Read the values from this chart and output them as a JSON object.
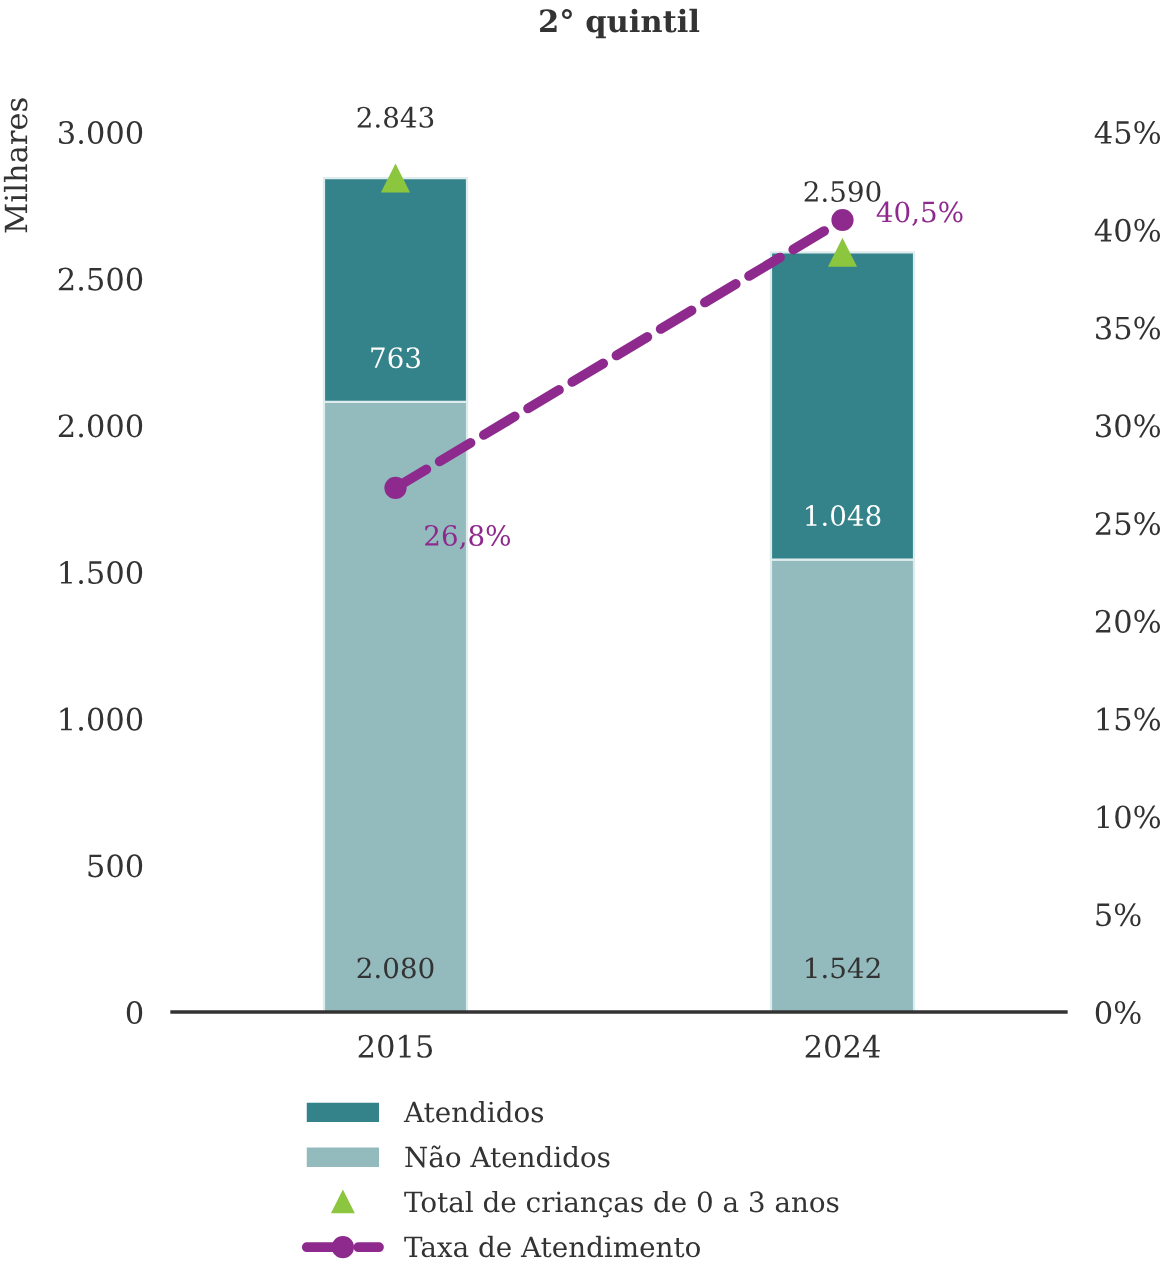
{
  "chart_data": {
    "type": "bar",
    "title": "2° quintil",
    "ylabel": "Milhares",
    "categories": [
      "2015",
      "2024"
    ],
    "stacked": true,
    "series": [
      {
        "name": "Não Atendidos",
        "color": "#93babd",
        "values": [
          2080,
          1542
        ],
        "value_labels": [
          "2.080",
          "1.542"
        ]
      },
      {
        "name": "Atendidos",
        "color": "#35838a",
        "values": [
          763,
          1048
        ],
        "value_labels": [
          "763",
          "1.048"
        ]
      },
      {
        "name": "Total de crianças de 0 a 3 anos",
        "type": "scatter",
        "color": "#8cc63f",
        "marker": "triangle",
        "values": [
          2843,
          2590
        ],
        "value_labels": [
          "2.843",
          "2.590"
        ]
      },
      {
        "name": "Taxa de Atendimento",
        "type": "line",
        "axis": "y2",
        "color": "#8e2a8e",
        "marker": "circle",
        "line_style": "dashed",
        "values": [
          26.8,
          40.5
        ],
        "value_labels": [
          "26,8%",
          "40,5%"
        ]
      }
    ],
    "ylim": [
      0,
      3000
    ],
    "yticks": [
      0,
      500,
      {
        "value": 1000,
        "label": "1.000"
      },
      {
        "value": 1500,
        "label": "1.500"
      },
      {
        "value": 2000,
        "label": "2.000"
      },
      {
        "value": 2500,
        "label": "2.500"
      },
      {
        "value": 3000,
        "label": "3.000"
      }
    ],
    "y2lim": [
      0,
      45
    ],
    "y2ticks": [
      {
        "value": 0,
        "label": "0%"
      },
      {
        "value": 5,
        "label": "5%"
      },
      {
        "value": 10,
        "label": "10%"
      },
      {
        "value": 15,
        "label": "15%"
      },
      {
        "value": 20,
        "label": "20%"
      },
      {
        "value": 25,
        "label": "25%"
      },
      {
        "value": 30,
        "label": "30%"
      },
      {
        "value": 35,
        "label": "35%"
      },
      {
        "value": 40,
        "label": "40%"
      },
      {
        "value": 45,
        "label": "45%"
      }
    ],
    "legend": "bottom"
  }
}
